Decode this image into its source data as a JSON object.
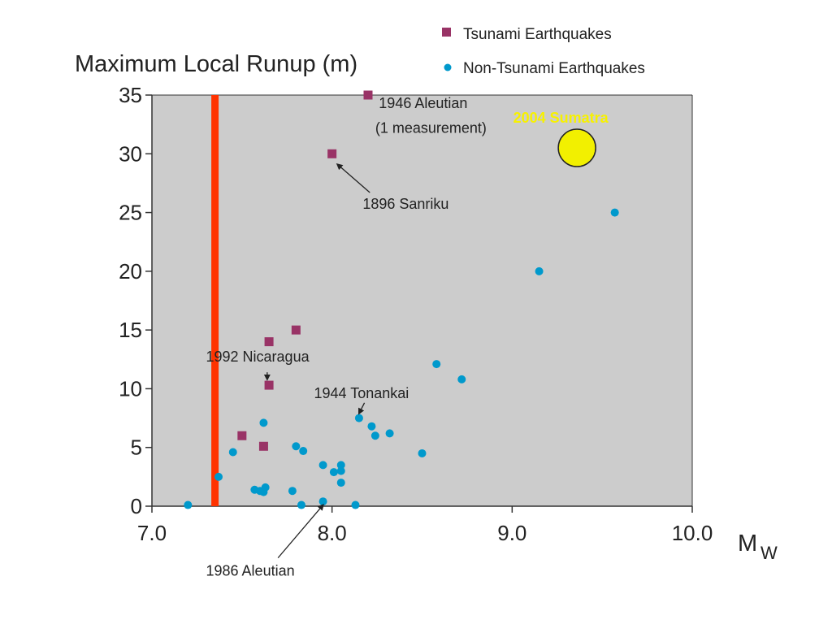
{
  "chart_data": {
    "type": "scatter",
    "ylabel": "Maximum Local Runup (m)",
    "xlabel": "10.0  M_W",
    "xlim": [
      7.0,
      10.0
    ],
    "ylim": [
      0,
      35
    ],
    "xticks": [
      "7.0",
      "8.0",
      "9.0",
      "10.0"
    ],
    "yticks": [
      "0",
      "5",
      "10",
      "15",
      "20",
      "25",
      "30",
      "35"
    ],
    "grid": false,
    "background": "#cccccc",
    "legend_position": "top-right",
    "threshold_line": {
      "x": 7.35,
      "color": "#ff3300"
    },
    "series": [
      {
        "name": "Tsunami Earthquakes",
        "marker": "square",
        "color": "#993366",
        "points": [
          [
            8.2,
            35
          ],
          [
            8.0,
            30
          ],
          [
            7.8,
            15
          ],
          [
            7.65,
            14
          ],
          [
            7.65,
            10.3
          ],
          [
            7.5,
            6
          ],
          [
            7.62,
            5.1
          ]
        ]
      },
      {
        "name": "Non-Tsunami Earthquakes",
        "marker": "circle",
        "color": "#0099cc",
        "points": [
          [
            9.57,
            25
          ],
          [
            9.15,
            20
          ],
          [
            8.58,
            12.1
          ],
          [
            8.72,
            10.8
          ],
          [
            8.15,
            7.5
          ],
          [
            8.22,
            6.8
          ],
          [
            8.24,
            6.0
          ],
          [
            8.32,
            6.2
          ],
          [
            8.5,
            4.5
          ],
          [
            7.62,
            7.1
          ],
          [
            7.45,
            4.6
          ],
          [
            7.8,
            5.1
          ],
          [
            7.84,
            4.7
          ],
          [
            7.37,
            2.5
          ],
          [
            7.95,
            3.5
          ],
          [
            8.05,
            3.5
          ],
          [
            8.05,
            3.0
          ],
          [
            8.01,
            2.9
          ],
          [
            8.05,
            2.0
          ],
          [
            7.57,
            1.4
          ],
          [
            7.6,
            1.3
          ],
          [
            7.63,
            1.6
          ],
          [
            7.62,
            1.2
          ],
          [
            7.78,
            1.3
          ],
          [
            7.95,
            0.4
          ],
          [
            7.2,
            0.1
          ],
          [
            7.83,
            0.1
          ],
          [
            8.13,
            0.1
          ]
        ]
      }
    ],
    "highlight": {
      "label": "2004 Sumatra",
      "x": 9.36,
      "y": 30.5,
      "color": "#f2f000"
    },
    "annotations": [
      {
        "label": "1946 Aleutian",
        "x": 8.26,
        "y": 33.9,
        "anchor": "start"
      },
      {
        "label": "(1 measurement)",
        "x": 8.24,
        "y": 31.8,
        "anchor": "start"
      },
      {
        "label": "1896 Sanriku",
        "x": 8.17,
        "y": 25.3,
        "anchor": "start",
        "arrow_from": [
          8.21,
          26.7
        ],
        "arrow_to": [
          8.03,
          29.1
        ]
      },
      {
        "label": "1992 Nicaragua",
        "x": 7.3,
        "y": 12.3,
        "anchor": "start",
        "arrow_from": [
          7.64,
          11.4
        ],
        "arrow_to": [
          7.64,
          10.8
        ]
      },
      {
        "label": "1944 Tonankai",
        "x": 7.9,
        "y": 9.2,
        "anchor": "start",
        "arrow_from": [
          8.18,
          8.8
        ],
        "arrow_to": [
          8.15,
          7.9
        ]
      },
      {
        "label": "1986 Aleutian",
        "x": 7.3,
        "y": -5.9,
        "anchor": "start",
        "arrow_from": [
          7.7,
          -4.4
        ],
        "arrow_to": [
          7.95,
          0.1
        ]
      }
    ]
  }
}
